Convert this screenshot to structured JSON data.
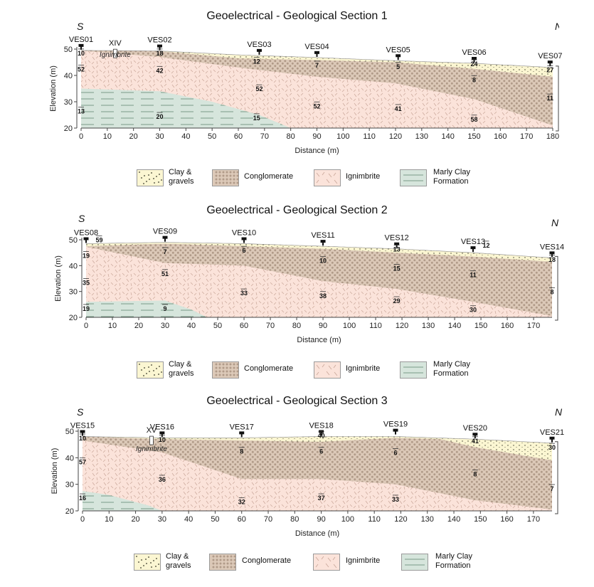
{
  "colors": {
    "clay": "#fbf6d2",
    "conglomerate": "#dcc9b8",
    "ignimbrite": "#fbe3da",
    "marly": "#d6e5dc",
    "marly_line": "#7a9c88",
    "dot": "#b19b89",
    "tick": "#c9a699"
  },
  "axis": {
    "xlabel": "Distance (m)",
    "ylabel": "Elevation (m)",
    "ylim": [
      20,
      50
    ],
    "yticks": [
      20,
      30,
      40,
      50
    ]
  },
  "legend": {
    "clay": [
      "Clay &",
      "gravels"
    ],
    "conglomerate": "Conglomerate",
    "ignimbrite": "Ignimbrite",
    "marly": [
      "Marly Clay",
      "Formation"
    ]
  },
  "sections": [
    {
      "title": "Geoelectrical - Geological Section 1",
      "left_dir": "S",
      "right_dir": "N",
      "xmax": 180,
      "xticks": [
        0,
        10,
        20,
        30,
        40,
        50,
        60,
        70,
        80,
        90,
        100,
        110,
        120,
        130,
        140,
        150,
        160,
        170,
        180
      ],
      "surface": [
        [
          0,
          49.5
        ],
        [
          30,
          49.3
        ],
        [
          60,
          47.8
        ],
        [
          90,
          46.8
        ],
        [
          120,
          45.6
        ],
        [
          150,
          44.6
        ],
        [
          180,
          43
        ]
      ],
      "clay_base": [
        [
          30,
          49.2
        ],
        [
          60,
          46.5
        ],
        [
          90,
          45.8
        ],
        [
          120,
          45
        ],
        [
          150,
          42.5
        ],
        [
          180,
          39.5
        ]
      ],
      "cong_base": [
        [
          0,
          49.4
        ],
        [
          30,
          47
        ],
        [
          60,
          43
        ],
        [
          90,
          39.5
        ],
        [
          120,
          37
        ],
        [
          150,
          31
        ],
        [
          180,
          21
        ]
      ],
      "marly_top": [
        [
          0,
          35
        ],
        [
          30,
          34
        ],
        [
          50,
          30
        ],
        [
          68,
          25
        ],
        [
          80,
          20
        ]
      ],
      "ves": [
        {
          "label": "VES01",
          "x": 0,
          "y": 49.5
        },
        {
          "label": "VES02",
          "x": 30,
          "y": 49.3
        },
        {
          "label": "VES03",
          "x": 68,
          "y": 47.6
        },
        {
          "label": "VES04",
          "x": 90,
          "y": 46.8
        },
        {
          "label": "VES05",
          "x": 121,
          "y": 45.6
        },
        {
          "label": "VES06",
          "x": 150,
          "y": 44.6
        },
        {
          "label": "VES07",
          "x": 179,
          "y": 43.2
        }
      ],
      "borehole": {
        "label": "XIV",
        "x": 13
      },
      "rock_label": {
        "text": "Ignimbrite",
        "x": 13,
        "y": 47
      },
      "values": [
        {
          "t": "10",
          "x": 0,
          "y": 47.6
        },
        {
          "t": "52",
          "x": 0,
          "y": 41.5
        },
        {
          "t": "13",
          "x": 0,
          "y": 25.5
        },
        {
          "t": "18",
          "x": 30,
          "y": 47.6
        },
        {
          "t": "42",
          "x": 30,
          "y": 41
        },
        {
          "t": "20",
          "x": 30,
          "y": 23.5
        },
        {
          "t": "12",
          "x": 67,
          "y": 44.5
        },
        {
          "t": "52",
          "x": 68,
          "y": 34
        },
        {
          "t": "15",
          "x": 67,
          "y": 23
        },
        {
          "t": "7",
          "x": 90,
          "y": 43
        },
        {
          "t": "52",
          "x": 90,
          "y": 27.5
        },
        {
          "t": "5",
          "x": 121,
          "y": 42.5
        },
        {
          "t": "41",
          "x": 121,
          "y": 26.5
        },
        {
          "t": "24",
          "x": 150,
          "y": 43.5
        },
        {
          "t": "8",
          "x": 150,
          "y": 37.5
        },
        {
          "t": "58",
          "x": 150,
          "y": 22.5
        },
        {
          "t": "27",
          "x": 179,
          "y": 41.2
        },
        {
          "t": "11",
          "x": 179,
          "y": 30.5
        }
      ]
    },
    {
      "title": "Geoelectrical - Geological Section 2",
      "left_dir": "S",
      "right_dir": "N",
      "xmax": 177,
      "xticks": [
        0,
        10,
        20,
        30,
        40,
        50,
        60,
        70,
        80,
        90,
        100,
        110,
        120,
        130,
        140,
        150,
        160,
        170
      ],
      "surface": [
        [
          0,
          48.5
        ],
        [
          30,
          49
        ],
        [
          60,
          48.5
        ],
        [
          90,
          47.5
        ],
        [
          118,
          46.5
        ],
        [
          147,
          45
        ],
        [
          177,
          43
        ]
      ],
      "clay_base": [
        [
          0,
          47.5
        ],
        [
          30,
          48.5
        ],
        [
          60,
          47.5
        ],
        [
          90,
          46.5
        ],
        [
          118,
          45
        ],
        [
          147,
          43.5
        ],
        [
          177,
          41.5
        ]
      ],
      "cong_base": [
        [
          0,
          47.3
        ],
        [
          30,
          41
        ],
        [
          60,
          40
        ],
        [
          90,
          34
        ],
        [
          118,
          31
        ],
        [
          147,
          26
        ],
        [
          177,
          20.5
        ]
      ],
      "marly_top": [
        [
          0,
          26
        ],
        [
          30,
          26.5
        ],
        [
          40,
          23
        ],
        [
          46,
          20
        ]
      ],
      "ves": [
        {
          "label": "VES08",
          "x": 0,
          "y": 48.5
        },
        {
          "label": "VES09",
          "x": 30,
          "y": 49
        },
        {
          "label": "VES10",
          "x": 60,
          "y": 48.5
        },
        {
          "label": "VES11",
          "x": 90,
          "y": 47.5
        },
        {
          "label": "VES12",
          "x": 118,
          "y": 46.5
        },
        {
          "label": "VES13",
          "x": 147,
          "y": 45
        },
        {
          "label": "VES14",
          "x": 177,
          "y": 43
        }
      ],
      "borehole": null,
      "rock_label": null,
      "values": [
        {
          "t": "59",
          "x": 5,
          "y": 49
        },
        {
          "t": "19",
          "x": 0,
          "y": 43
        },
        {
          "t": "35",
          "x": 0,
          "y": 32.5
        },
        {
          "t": "19",
          "x": 0,
          "y": 22.5
        },
        {
          "t": "7",
          "x": 30,
          "y": 44.5
        },
        {
          "t": "51",
          "x": 30,
          "y": 36
        },
        {
          "t": "9",
          "x": 30,
          "y": 22.5
        },
        {
          "t": "6",
          "x": 60,
          "y": 45
        },
        {
          "t": "33",
          "x": 60,
          "y": 28.5
        },
        {
          "t": "10",
          "x": 90,
          "y": 41
        },
        {
          "t": "38",
          "x": 90,
          "y": 27.5
        },
        {
          "t": "13",
          "x": 118,
          "y": 45.5
        },
        {
          "t": "15",
          "x": 118,
          "y": 38
        },
        {
          "t": "29",
          "x": 118,
          "y": 25.5
        },
        {
          "t": "12",
          "x": 152,
          "y": 47
        },
        {
          "t": "11",
          "x": 147,
          "y": 35.5
        },
        {
          "t": "30",
          "x": 147,
          "y": 22
        },
        {
          "t": "18",
          "x": 177,
          "y": 41.5
        },
        {
          "t": "8",
          "x": 177,
          "y": 29
        }
      ]
    },
    {
      "title": "Geoelectrical - Geological Section 3",
      "left_dir": "S",
      "right_dir": "N",
      "xmax": 177,
      "xticks": [
        0,
        10,
        20,
        30,
        40,
        50,
        60,
        70,
        80,
        90,
        100,
        110,
        120,
        130,
        140,
        150,
        160,
        170
      ],
      "surface": [
        [
          0,
          48
        ],
        [
          30,
          47.5
        ],
        [
          60,
          47.5
        ],
        [
          90,
          48
        ],
        [
          118,
          48
        ],
        [
          148,
          47
        ],
        [
          177,
          45.5
        ]
      ],
      "clay_base": [
        [
          0,
          48
        ],
        [
          30,
          47
        ],
        [
          60,
          46.5
        ],
        [
          90,
          46
        ],
        [
          118,
          47.5
        ],
        [
          135,
          47
        ],
        [
          148,
          44
        ],
        [
          177,
          39
        ]
      ],
      "cong_base": [
        [
          0,
          46.5
        ],
        [
          30,
          42
        ],
        [
          60,
          32
        ],
        [
          90,
          32
        ],
        [
          118,
          30
        ],
        [
          148,
          24
        ],
        [
          177,
          20.5
        ]
      ],
      "marly_top": [
        [
          0,
          27.5
        ],
        [
          10,
          26
        ],
        [
          25,
          22
        ],
        [
          30,
          20
        ]
      ],
      "ves": [
        {
          "label": "VES15",
          "x": 0,
          "y": 48
        },
        {
          "label": "VES16",
          "x": 30,
          "y": 47.5
        },
        {
          "label": "VES17",
          "x": 60,
          "y": 47.5
        },
        {
          "label": "VES18",
          "x": 90,
          "y": 48
        },
        {
          "label": "VES19",
          "x": 118,
          "y": 48.5
        },
        {
          "label": "VES20",
          "x": 148,
          "y": 47
        },
        {
          "label": "VES21",
          "x": 177,
          "y": 45.5
        }
      ],
      "borehole": {
        "label": "XV",
        "x": 26
      },
      "rock_label": {
        "text": "Ignimbrite",
        "x": 26,
        "y": 42.5
      },
      "values": [
        {
          "t": "10",
          "x": 0,
          "y": 46.5
        },
        {
          "t": "57",
          "x": 0,
          "y": 37.5
        },
        {
          "t": "16",
          "x": 0,
          "y": 24
        },
        {
          "t": "10",
          "x": 30,
          "y": 46
        },
        {
          "t": "36",
          "x": 30,
          "y": 31
        },
        {
          "t": "8",
          "x": 60,
          "y": 41.5
        },
        {
          "t": "32",
          "x": 60,
          "y": 22.5
        },
        {
          "t": "40",
          "x": 90,
          "y": 47.5
        },
        {
          "t": "6",
          "x": 90,
          "y": 41.5
        },
        {
          "t": "37",
          "x": 90,
          "y": 24
        },
        {
          "t": "6",
          "x": 118,
          "y": 41
        },
        {
          "t": "33",
          "x": 118,
          "y": 23.5
        },
        {
          "t": "41",
          "x": 148,
          "y": 45.5
        },
        {
          "t": "8",
          "x": 148,
          "y": 33
        },
        {
          "t": "30",
          "x": 177,
          "y": 43
        },
        {
          "t": "7",
          "x": 177,
          "y": 27.5
        }
      ]
    }
  ]
}
